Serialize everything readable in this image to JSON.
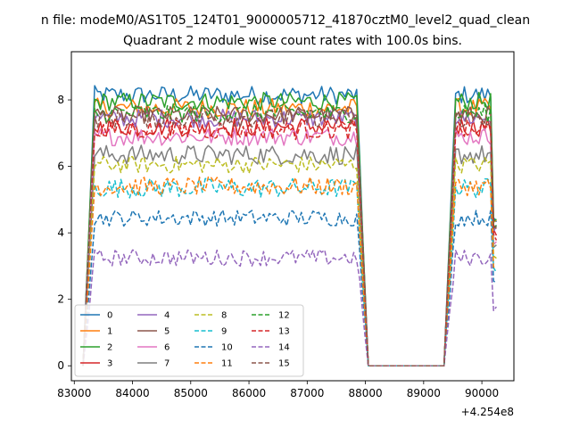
{
  "figure": {
    "suptitle": "n file: modeM0/AS1T05_124T01_9000005712_41870cztM0_level2_quad_clean"
  },
  "chart_data": {
    "type": "line",
    "title": "Quadrant 2 module wise count rates with 100.0s bins.",
    "xlabel": "",
    "ylabel": "",
    "x_offset_label": "+4.254e8",
    "x_offset": 425400000,
    "xlim": [
      425482950,
      425490550
    ],
    "ylim": [
      -0.45,
      9.45
    ],
    "xticks": [
      425483000,
      425484000,
      425485000,
      425486000,
      425487000,
      425488000,
      425489000,
      425490000
    ],
    "xtick_labels": [
      "83000",
      "84000",
      "85000",
      "86000",
      "87000",
      "88000",
      "89000",
      "90000"
    ],
    "yticks": [
      0,
      2,
      4,
      6,
      8
    ],
    "ytick_labels": [
      "0",
      "2",
      "4",
      "6",
      "8"
    ],
    "grid": false,
    "legend": {
      "placement": "lower-left",
      "columns": 4
    },
    "activity": {
      "on1": [
        425483150,
        425483350
      ],
      "plateau1_end": 425487850,
      "off1": [
        425487850,
        425488050
      ],
      "off_end": 425489350,
      "on2": [
        425489350,
        425489550
      ],
      "plateau2_end": 425490150,
      "end": 425490250,
      "step": 50
    },
    "series": [
      {
        "name": "0",
        "color": "#1f77b4",
        "style": "solid",
        "level": 8.15,
        "noise": 0.28
      },
      {
        "name": "1",
        "color": "#ff7f0e",
        "style": "solid",
        "level": 7.75,
        "noise": 0.3
      },
      {
        "name": "2",
        "color": "#2ca02c",
        "style": "solid",
        "level": 7.95,
        "noise": 0.28
      },
      {
        "name": "3",
        "color": "#d62728",
        "style": "solid",
        "level": 7.2,
        "noise": 0.3
      },
      {
        "name": "4",
        "color": "#9467bd",
        "style": "solid",
        "level": 7.45,
        "noise": 0.28
      },
      {
        "name": "5",
        "color": "#8c564b",
        "style": "solid",
        "level": 7.55,
        "noise": 0.26
      },
      {
        "name": "6",
        "color": "#e377c2",
        "style": "solid",
        "level": 6.9,
        "noise": 0.28
      },
      {
        "name": "7",
        "color": "#7f7f7f",
        "style": "solid",
        "level": 6.35,
        "noise": 0.3
      },
      {
        "name": "8",
        "color": "#bcbd22",
        "style": "dashed",
        "level": 6.05,
        "noise": 0.26
      },
      {
        "name": "9",
        "color": "#17becf",
        "style": "dashed",
        "level": 5.35,
        "noise": 0.3
      },
      {
        "name": "10",
        "color": "#1f77b4",
        "style": "dashed",
        "level": 4.45,
        "noise": 0.25
      },
      {
        "name": "11",
        "color": "#ff7f0e",
        "style": "dashed",
        "level": 5.4,
        "noise": 0.28
      },
      {
        "name": "12",
        "color": "#2ca02c",
        "style": "dashed",
        "level": 7.6,
        "noise": 0.28
      },
      {
        "name": "13",
        "color": "#d62728",
        "style": "dashed",
        "level": 7.1,
        "noise": 0.3
      },
      {
        "name": "14",
        "color": "#9467bd",
        "style": "dashed",
        "level": 3.25,
        "noise": 0.25
      },
      {
        "name": "15",
        "color": "#8c564b",
        "style": "dashed",
        "level": 7.45,
        "noise": 0.28
      }
    ]
  }
}
